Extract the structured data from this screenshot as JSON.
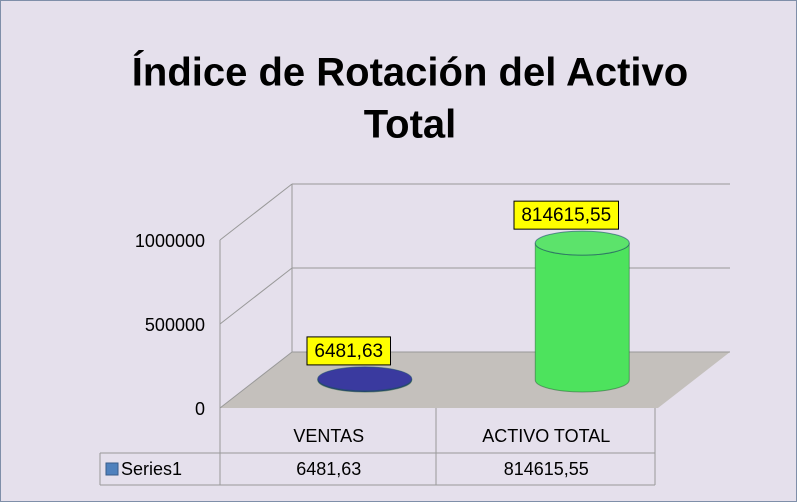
{
  "chart_data": {
    "type": "cylinder3d",
    "title": "Índice de Rotación del Activo Total",
    "categories": [
      "VENTAS",
      "ACTIVO TOTAL"
    ],
    "series": [
      {
        "name": "Series1",
        "color": "#4f81bd",
        "point_colors": [
          "#2b2b9b",
          "#4de35d"
        ],
        "values": [
          6481.63,
          814615.55
        ],
        "value_labels": [
          "6481,63",
          "814615,55"
        ]
      }
    ],
    "ylim": [
      0,
      1000000
    ],
    "yticks": [
      0,
      500000,
      1000000
    ],
    "grid": true
  }
}
